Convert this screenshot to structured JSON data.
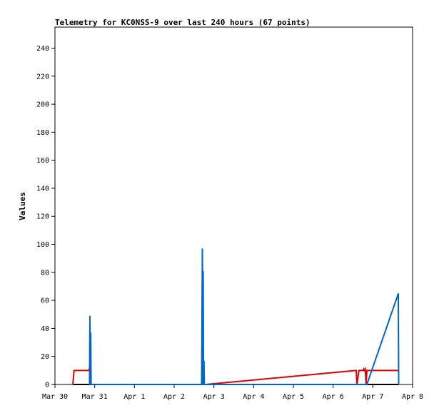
{
  "chart_data": {
    "type": "line",
    "title": "Telemetry for KC0NSS-9 over last 240 hours (67 points)",
    "xlabel": "",
    "ylabel": "Values",
    "xlim": [
      "2021-03-30T00:00",
      "2021-04-08T00:00"
    ],
    "ylim": [
      0,
      255
    ],
    "x_ticks": [
      "Mar 30",
      "Mar 31",
      "Apr 1",
      "Apr 2",
      "Apr 3",
      "Apr 4",
      "Apr 5",
      "Apr 6",
      "Apr 7",
      "Apr 8"
    ],
    "y_ticks": [
      0,
      20,
      40,
      60,
      80,
      100,
      120,
      140,
      160,
      180,
      200,
      220,
      240
    ],
    "grid": false,
    "colors": {
      "red_series": "#e00000",
      "blue_series": "#0066cc",
      "black_series": "#000000"
    },
    "series": [
      {
        "color": "#000000",
        "points": [
          [
            "2021-03-30T10:48",
            0
          ],
          [
            "2021-04-07T15:36",
            0
          ]
        ]
      },
      {
        "color": "#e00000",
        "points": [
          [
            "2021-03-30T10:48",
            0
          ],
          [
            "2021-03-30T11:31",
            10
          ],
          [
            "2021-03-30T20:24",
            10
          ],
          [
            "2021-03-30T20:53",
            12
          ],
          [
            "2021-03-30T21:07",
            0
          ],
          [
            "2021-04-02T18:43",
            0
          ],
          [
            "2021-04-02T19:12",
            0
          ],
          [
            "2021-04-06T13:55",
            10
          ],
          [
            "2021-04-06T14:24",
            0
          ],
          [
            "2021-04-06T15:36",
            10
          ],
          [
            "2021-04-06T18:14",
            10
          ],
          [
            "2021-04-06T18:29",
            11
          ],
          [
            "2021-04-06T18:58",
            10
          ],
          [
            "2021-04-06T19:26",
            11
          ],
          [
            "2021-04-06T19:55",
            0
          ],
          [
            "2021-04-06T20:24",
            10
          ],
          [
            "2021-04-07T15:36",
            10
          ]
        ]
      },
      {
        "color": "#0066cc",
        "points": [
          [
            "2021-03-30T20:53",
            0
          ],
          [
            "2021-03-30T21:07",
            49
          ],
          [
            "2021-03-30T21:22",
            0
          ],
          [
            "2021-03-30T21:36",
            37
          ],
          [
            "2021-03-30T21:50",
            0
          ],
          [
            "2021-04-02T16:34",
            0
          ],
          [
            "2021-04-02T16:48",
            49
          ],
          [
            "2021-04-02T17:02",
            97
          ],
          [
            "2021-04-02T17:17",
            0
          ],
          [
            "2021-04-02T17:31",
            81
          ],
          [
            "2021-04-02T17:46",
            0
          ],
          [
            "2021-04-02T18:00",
            17
          ],
          [
            "2021-04-02T18:14",
            0
          ],
          [
            "2021-04-06T20:24",
            0
          ],
          [
            "2021-04-07T15:07",
            64
          ],
          [
            "2021-04-07T15:22",
            65
          ],
          [
            "2021-04-07T15:36",
            0
          ]
        ]
      }
    ]
  }
}
